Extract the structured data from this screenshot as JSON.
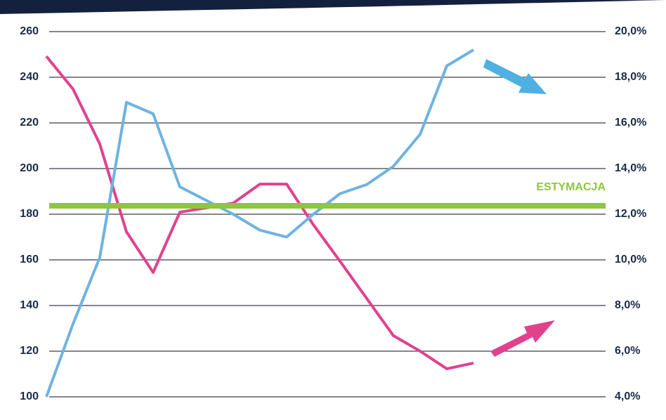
{
  "chart_data": {
    "type": "line",
    "categories": [
      null,
      null,
      null,
      null,
      null,
      null,
      null,
      null,
      null,
      null,
      null,
      null,
      null,
      null,
      null,
      null,
      null
    ],
    "series": [
      {
        "color": "#e0428e",
        "values": [
          249.2,
          234.8,
          210.8,
          172.3,
          154.5,
          180.9,
          182.8,
          184.9,
          193.2,
          193.2,
          175.4,
          159.4,
          143.1,
          126.8,
          120,
          112.3,
          114.8
        ]
      },
      {
        "color": "#6fb3e0",
        "axis": "y2",
        "values": [
          4.0,
          7.2,
          10.1,
          16.9,
          16.4,
          13.2,
          12.6,
          12.0,
          11.3,
          11.0,
          12.0,
          12.9,
          13.3,
          14.1,
          15.5,
          18.5,
          19.2
        ]
      }
    ],
    "ylim": [
      100,
      260
    ],
    "yticks": [
      100,
      120,
      140,
      160,
      180,
      200,
      220,
      240,
      260
    ],
    "y2lim": [
      4,
      20
    ],
    "y2ticks": [
      {
        "value": 4,
        "label": "4,0%"
      },
      {
        "value": 6,
        "label": "6,0%"
      },
      {
        "value": 8,
        "label": "8,0%"
      },
      {
        "value": 10,
        "label": "10,0%"
      },
      {
        "value": 12,
        "label": "12,0%"
      },
      {
        "value": 14,
        "label": "14,0%"
      },
      {
        "value": 16,
        "label": "16,0%"
      },
      {
        "value": 18,
        "label": "18,0%"
      },
      {
        "value": 20,
        "label": "20,0%"
      }
    ],
    "grid": true,
    "reference_line": {
      "label": "ESTYMACJA",
      "value": 183.7,
      "color": "#8dc63f"
    }
  }
}
